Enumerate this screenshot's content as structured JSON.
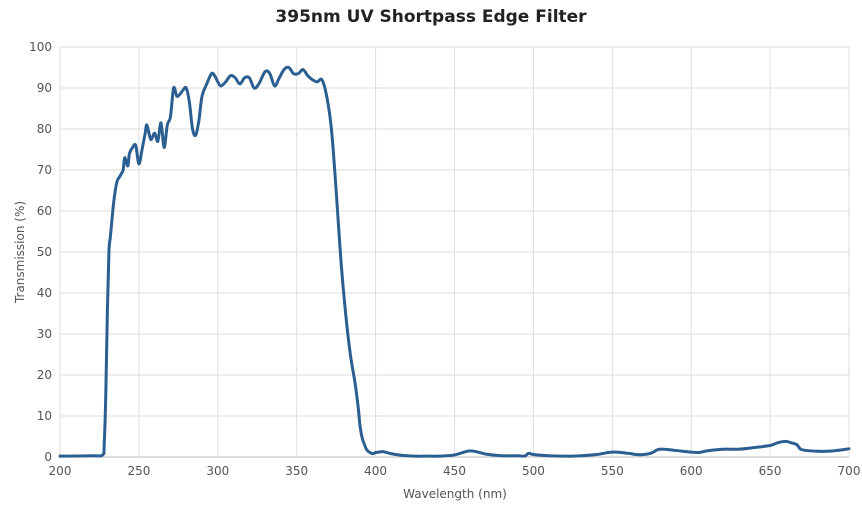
{
  "chart_data": {
    "type": "line",
    "title": "395nm UV Shortpass Edge Filter",
    "xlabel": "Wavelength (nm)",
    "ylabel": "Transmission (%)",
    "xlim": [
      200,
      700
    ],
    "ylim": [
      0,
      100
    ],
    "xticks": [
      200,
      250,
      300,
      350,
      400,
      450,
      500,
      550,
      600,
      650,
      700
    ],
    "yticks": [
      0,
      10,
      20,
      30,
      40,
      50,
      60,
      70,
      80,
      90,
      100
    ],
    "grid": true,
    "line_color": "#2c5f91",
    "series": [
      {
        "name": "",
        "x": [
          200,
          220,
          227,
          228,
          229,
          230,
          231,
          232,
          234,
          236,
          238,
          240,
          241,
          243,
          244,
          246,
          248,
          250,
          252,
          254,
          255,
          257,
          258,
          260,
          262,
          264,
          266,
          268,
          270,
          272,
          274,
          276,
          278,
          280,
          282,
          284,
          286,
          288,
          290,
          293,
          296,
          298,
          300,
          302,
          305,
          308,
          311,
          314,
          317,
          320,
          323,
          326,
          330,
          333,
          336,
          339,
          342,
          345,
          348,
          351,
          354,
          357,
          360,
          363,
          366,
          369,
          372,
          375,
          378,
          381,
          384,
          387,
          389,
          390,
          391,
          392,
          393,
          394,
          395,
          396,
          397,
          398,
          399,
          400,
          402,
          404,
          406,
          410,
          415,
          420,
          425,
          430,
          435,
          440,
          450,
          460,
          470,
          480,
          490,
          493,
          495,
          497,
          500,
          510,
          520,
          525,
          530,
          540,
          550,
          560,
          565,
          570,
          575,
          580,
          590,
          600,
          605,
          610,
          620,
          630,
          640,
          650,
          655,
          660,
          663,
          667,
          670,
          680,
          690,
          700
        ],
        "y": [
          0.2,
          0.3,
          0.5,
          3,
          15,
          35,
          50,
          54,
          62,
          67,
          68.5,
          70,
          73,
          71,
          74,
          75.5,
          76,
          71.5,
          75,
          79,
          81,
          78,
          77.5,
          79,
          77,
          81.5,
          75.5,
          81,
          83,
          90,
          88,
          88.5,
          89.5,
          90,
          86.5,
          80,
          78.5,
          82,
          88,
          91,
          93.5,
          93,
          91.5,
          90.5,
          91.5,
          93,
          92.5,
          91,
          92.5,
          92.5,
          90,
          91,
          94,
          93.5,
          90.5,
          92.5,
          94.5,
          95,
          93.5,
          93.5,
          94.5,
          93,
          92,
          91.5,
          92,
          88,
          80,
          65,
          48,
          35,
          25,
          18,
          12,
          8,
          5.5,
          4,
          3,
          2,
          1.5,
          1.2,
          1.0,
          0.8,
          0.9,
          1.1,
          1.2,
          1.3,
          1.2,
          0.8,
          0.5,
          0.3,
          0.2,
          0.2,
          0.2,
          0.2,
          0.5,
          1.5,
          0.7,
          0.3,
          0.3,
          0.2,
          0.3,
          0.9,
          0.6,
          0.3,
          0.2,
          0.2,
          0.3,
          0.6,
          1.2,
          0.9,
          0.6,
          0.6,
          1.0,
          1.9,
          1.6,
          1.2,
          1.1,
          1.5,
          1.9,
          1.9,
          2.3,
          2.8,
          3.5,
          3.8,
          3.5,
          3.0,
          1.8,
          1.4,
          1.5,
          2.0
        ]
      }
    ]
  }
}
